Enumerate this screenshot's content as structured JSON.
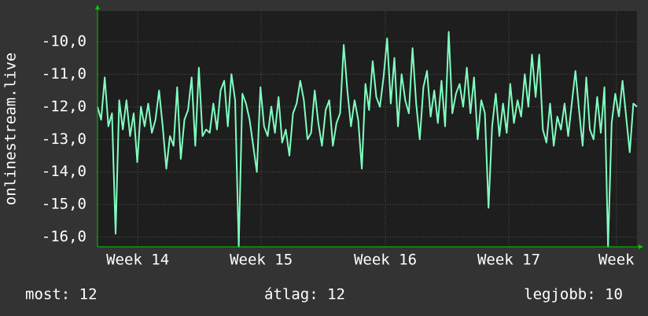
{
  "chart_data": {
    "type": "line",
    "ylabel": "onlinestream.live",
    "color": "#80ffc0",
    "grid": true,
    "ylim": [
      -16.3,
      -9.06
    ],
    "yticks": [
      {
        "value": -16,
        "label": "-16,0"
      },
      {
        "value": -15,
        "label": "-15,0"
      },
      {
        "value": -14,
        "label": "-14,0"
      },
      {
        "value": -13,
        "label": "-13,0"
      },
      {
        "value": -12,
        "label": "-12,0"
      },
      {
        "value": -11,
        "label": "-11,0"
      },
      {
        "value": -10,
        "label": "-10,0"
      }
    ],
    "xlim": [
      0,
      149
    ],
    "xticks": [
      {
        "value": 11.1,
        "label": "Week 14"
      },
      {
        "value": 45.2,
        "label": "Week 15"
      },
      {
        "value": 79.5,
        "label": "Week 16"
      },
      {
        "value": 113.6,
        "label": "Week 17"
      },
      {
        "value": 143.3,
        "label": "Week"
      }
    ],
    "values": [
      -12.0,
      -12.4,
      -11.1,
      -12.6,
      -12.2,
      -15.9,
      -11.8,
      -12.7,
      -11.8,
      -12.9,
      -12.2,
      -13.7,
      -12.0,
      -12.6,
      -11.9,
      -12.8,
      -12.4,
      -11.5,
      -12.6,
      -13.9,
      -12.9,
      -13.2,
      -11.4,
      -13.6,
      -12.4,
      -12.1,
      -11.1,
      -13.2,
      -10.8,
      -12.9,
      -12.7,
      -12.8,
      -11.9,
      -12.7,
      -11.5,
      -11.2,
      -12.6,
      -11.0,
      -11.8,
      -16.3,
      -11.6,
      -11.9,
      -12.4,
      -13.2,
      -14.0,
      -11.4,
      -12.6,
      -12.9,
      -12.0,
      -12.8,
      -11.7,
      -13.1,
      -12.7,
      -13.5,
      -12.2,
      -11.9,
      -11.2,
      -11.8,
      -13.0,
      -12.8,
      -11.5,
      -12.5,
      -13.2,
      -12.1,
      -11.8,
      -13.2,
      -12.5,
      -12.2,
      -10.1,
      -11.5,
      -12.6,
      -11.8,
      -12.4,
      -13.9,
      -11.3,
      -12.1,
      -10.6,
      -11.7,
      -12.0,
      -11.1,
      -9.9,
      -11.9,
      -10.5,
      -12.6,
      -11.0,
      -11.8,
      -12.2,
      -10.2,
      -11.9,
      -13.0,
      -11.4,
      -10.9,
      -12.3,
      -11.5,
      -12.5,
      -11.2,
      -12.6,
      -9.7,
      -12.2,
      -11.6,
      -11.3,
      -12.0,
      -10.8,
      -12.2,
      -11.1,
      -13.0,
      -11.8,
      -12.2,
      -15.1,
      -12.6,
      -11.6,
      -12.9,
      -11.9,
      -12.8,
      -11.3,
      -12.5,
      -11.8,
      -12.3,
      -11.0,
      -12.0,
      -10.4,
      -11.7,
      -10.4,
      -12.7,
      -13.1,
      -11.9,
      -13.2,
      -12.3,
      -12.7,
      -11.9,
      -12.9,
      -11.9,
      -10.9,
      -12.1,
      -13.2,
      -11.1,
      -12.7,
      -13.0,
      -11.7,
      -12.8,
      -11.4,
      -16.3,
      -12.5,
      -11.6,
      -12.3,
      -11.2,
      -12.3,
      -13.4,
      -11.9,
      -12.0
    ],
    "stats": [
      "most: 12",
      "átlag: 12",
      "legjobb: 10"
    ]
  }
}
